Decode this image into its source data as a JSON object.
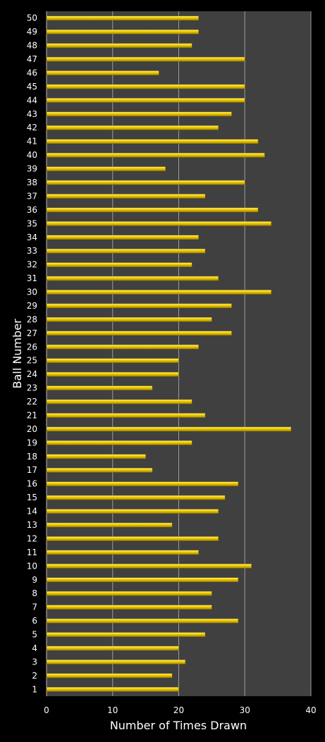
{
  "chart_data": {
    "type": "bar",
    "orientation": "horizontal",
    "title": "",
    "xlabel": "Number of Times Drawn",
    "ylabel": "Ball Number",
    "xlim": [
      0,
      40
    ],
    "xticks": [
      0,
      10,
      20,
      30,
      40
    ],
    "grid": true,
    "legend": "none",
    "colors": {
      "bar": "#f5d000",
      "plot_bg": "#404040",
      "page_bg": "#000000",
      "grid": "#9a9a9a",
      "text": "#ffffff"
    },
    "categories": [
      "1",
      "2",
      "3",
      "4",
      "5",
      "6",
      "7",
      "8",
      "9",
      "10",
      "11",
      "12",
      "13",
      "14",
      "15",
      "16",
      "17",
      "18",
      "19",
      "20",
      "21",
      "22",
      "23",
      "24",
      "25",
      "26",
      "27",
      "28",
      "29",
      "30",
      "31",
      "32",
      "33",
      "34",
      "35",
      "36",
      "37",
      "38",
      "39",
      "40",
      "41",
      "42",
      "43",
      "44",
      "45",
      "46",
      "47",
      "48",
      "49",
      "50"
    ],
    "values": [
      20,
      19,
      21,
      20,
      24,
      29,
      25,
      25,
      29,
      31,
      23,
      26,
      19,
      26,
      27,
      29,
      16,
      15,
      22,
      37,
      24,
      22,
      16,
      20,
      20,
      23,
      28,
      25,
      28,
      34,
      26,
      22,
      24,
      23,
      34,
      32,
      24,
      30,
      18,
      33,
      32,
      26,
      28,
      30,
      30,
      17,
      30,
      22,
      23,
      23
    ]
  }
}
